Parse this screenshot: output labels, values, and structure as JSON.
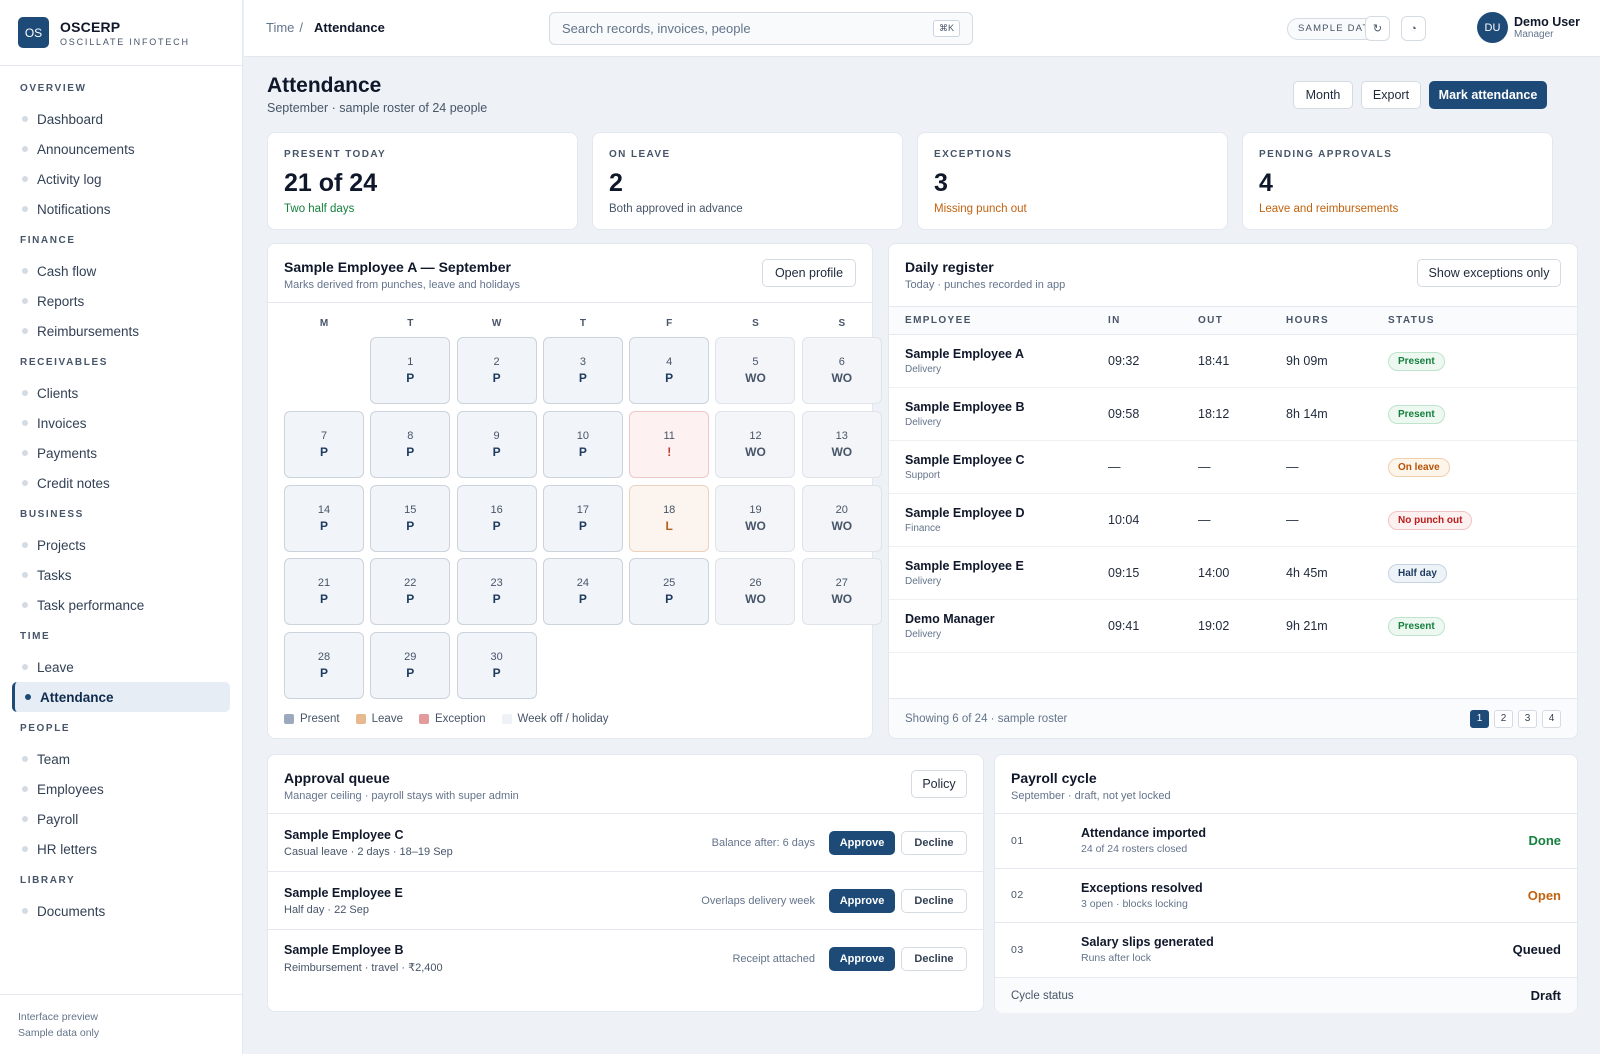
{
  "brand": {
    "logo": "OS",
    "name": "OSCERP",
    "sub": "OSCILLATE INFOTECH"
  },
  "nav": [
    {
      "section": "OVERVIEW",
      "items": [
        "Dashboard",
        "Announcements",
        "Activity log",
        "Notifications"
      ]
    },
    {
      "section": "FINANCE",
      "items": [
        "Cash flow",
        "Reports",
        "Reimbursements"
      ]
    },
    {
      "section": "RECEIVABLES",
      "items": [
        "Clients",
        "Invoices",
        "Payments",
        "Credit notes"
      ]
    },
    {
      "section": "BUSINESS",
      "items": [
        "Projects",
        "Tasks",
        "Task performance"
      ]
    },
    {
      "section": "TIME",
      "items": [
        "Leave",
        "Attendance"
      ]
    },
    {
      "section": "PEOPLE",
      "items": [
        "Team",
        "Employees",
        "Payroll",
        "HR letters"
      ]
    },
    {
      "section": "LIBRARY",
      "items": [
        "Documents"
      ]
    }
  ],
  "active_nav": "Attendance",
  "sidebar_footer": {
    "line1": "Interface preview",
    "line2": "Sample data only"
  },
  "topbar": {
    "crumb_parent": "Time",
    "crumb_sep": "/",
    "crumb_current": "Attendance",
    "search_placeholder": "Search records, invoices, people",
    "search_kbd": "⌘K",
    "sample_pill": "SAMPLE DATA",
    "user_initials": "DU",
    "user_name": "Demo User",
    "user_role": "Manager"
  },
  "page": {
    "title": "Attendance",
    "subtitle": "September · sample roster of 24 people",
    "btn_month": "Month",
    "btn_export": "Export",
    "btn_mark": "Mark attendance"
  },
  "stats": [
    {
      "label": "PRESENT TODAY",
      "value": "21 of 24",
      "note": "Two half days",
      "note_color": "#15803d"
    },
    {
      "label": "ON LEAVE",
      "value": "2",
      "note": "Both approved in advance",
      "note_color": "#475569"
    },
    {
      "label": "EXCEPTIONS",
      "value": "3",
      "note": "Missing punch out",
      "note_color": "#c2620f"
    },
    {
      "label": "PENDING APPROVALS",
      "value": "4",
      "note": "Leave and reimbursements",
      "note_color": "#c2620f"
    }
  ],
  "calendar": {
    "title": "Sample Employee A — September",
    "subtitle": "Marks derived from punches, leave and holidays",
    "open_profile": "Open profile",
    "weekdays": [
      "M",
      "T",
      "W",
      "T",
      "F",
      "S",
      "S"
    ],
    "lead_blanks": 1,
    "days": [
      {
        "d": "1",
        "m": "P",
        "t": "p"
      },
      {
        "d": "2",
        "m": "P",
        "t": "p"
      },
      {
        "d": "3",
        "m": "P",
        "t": "p"
      },
      {
        "d": "4",
        "m": "P",
        "t": "p"
      },
      {
        "d": "5",
        "m": "WO",
        "t": "wo"
      },
      {
        "d": "6",
        "m": "WO",
        "t": "wo"
      },
      {
        "d": "7",
        "m": "P",
        "t": "p"
      },
      {
        "d": "8",
        "m": "P",
        "t": "p"
      },
      {
        "d": "9",
        "m": "P",
        "t": "p"
      },
      {
        "d": "10",
        "m": "P",
        "t": "p"
      },
      {
        "d": "11",
        "m": "!",
        "t": "ex"
      },
      {
        "d": "12",
        "m": "WO",
        "t": "wo"
      },
      {
        "d": "13",
        "m": "WO",
        "t": "wo"
      },
      {
        "d": "14",
        "m": "P",
        "t": "p"
      },
      {
        "d": "15",
        "m": "P",
        "t": "p"
      },
      {
        "d": "16",
        "m": "P",
        "t": "p"
      },
      {
        "d": "17",
        "m": "P",
        "t": "p"
      },
      {
        "d": "18",
        "m": "L",
        "t": "lv"
      },
      {
        "d": "19",
        "m": "WO",
        "t": "wo"
      },
      {
        "d": "20",
        "m": "WO",
        "t": "wo"
      },
      {
        "d": "21",
        "m": "P",
        "t": "p"
      },
      {
        "d": "22",
        "m": "P",
        "t": "p"
      },
      {
        "d": "23",
        "m": "P",
        "t": "p"
      },
      {
        "d": "24",
        "m": "P",
        "t": "p"
      },
      {
        "d": "25",
        "m": "P",
        "t": "p"
      },
      {
        "d": "26",
        "m": "WO",
        "t": "wo"
      },
      {
        "d": "27",
        "m": "WO",
        "t": "wo"
      },
      {
        "d": "28",
        "m": "P",
        "t": "p"
      },
      {
        "d": "29",
        "m": "P",
        "t": "p"
      },
      {
        "d": "30",
        "m": "P",
        "t": "p"
      }
    ],
    "legend": [
      {
        "label": "Present",
        "color": "#9aa9bd"
      },
      {
        "label": "Leave",
        "color": "#e8b98f"
      },
      {
        "label": "Exception",
        "color": "#e39a9a"
      },
      {
        "label": "Week off / holiday",
        "color": "#eef1f5"
      }
    ]
  },
  "register": {
    "title": "Daily register",
    "subtitle": "Today · punches recorded in app",
    "filter_btn": "Show exceptions only",
    "columns": [
      "EMPLOYEE",
      "IN",
      "OUT",
      "HOURS",
      "STATUS"
    ],
    "rows": [
      {
        "name": "Sample Employee A",
        "dept": "Delivery",
        "in": "09:32",
        "out": "18:41",
        "hours": "9h 09m",
        "status": "Present",
        "kind": "present"
      },
      {
        "name": "Sample Employee B",
        "dept": "Delivery",
        "in": "09:58",
        "out": "18:12",
        "hours": "8h 14m",
        "status": "Present",
        "kind": "present"
      },
      {
        "name": "Sample Employee C",
        "dept": "Support",
        "in": "—",
        "out": "—",
        "hours": "—",
        "status": "On leave",
        "kind": "leave"
      },
      {
        "name": "Sample Employee D",
        "dept": "Finance",
        "in": "10:04",
        "out": "—",
        "hours": "—",
        "status": "No punch out",
        "kind": "nopunch"
      },
      {
        "name": "Sample Employee E",
        "dept": "Delivery",
        "in": "09:15",
        "out": "14:00",
        "hours": "4h 45m",
        "status": "Half day",
        "kind": "half"
      },
      {
        "name": "Demo Manager",
        "dept": "Delivery",
        "in": "09:41",
        "out": "19:02",
        "hours": "9h 21m",
        "status": "Present",
        "kind": "present"
      }
    ],
    "footer": "Showing 6 of 24 · sample roster",
    "pages": [
      "1",
      "2",
      "3",
      "4"
    ]
  },
  "approvals": {
    "title": "Approval queue",
    "subtitle": "Manager ceiling · payroll stays with super admin",
    "policy_btn": "Policy",
    "approve": "Approve",
    "decline": "Decline",
    "rows": [
      {
        "name": "Sample Employee C",
        "detail": "Casual leave · 2 days · 18–19 Sep",
        "note": "Balance after: 6 days"
      },
      {
        "name": "Sample Employee E",
        "detail": "Half day · 22 Sep",
        "note": "Overlaps delivery week"
      },
      {
        "name": "Sample Employee B",
        "detail": "Reimbursement · travel · ₹2,400",
        "note": "Receipt attached"
      }
    ]
  },
  "payroll": {
    "title": "Payroll cycle",
    "subtitle": "September · draft, not yet locked",
    "steps": [
      {
        "n": "01",
        "name": "Attendance imported",
        "detail": "24 of 24 rosters closed",
        "state": "Done",
        "color": "#15803d"
      },
      {
        "n": "02",
        "name": "Exceptions resolved",
        "detail": "3 open · blocks locking",
        "state": "Open",
        "color": "#c2620f"
      },
      {
        "n": "03",
        "name": "Salary slips generated",
        "detail": "Runs after lock",
        "state": "Queued",
        "color": "#0f172a"
      }
    ],
    "status_label": "Cycle status",
    "status_value": "Draft"
  }
}
